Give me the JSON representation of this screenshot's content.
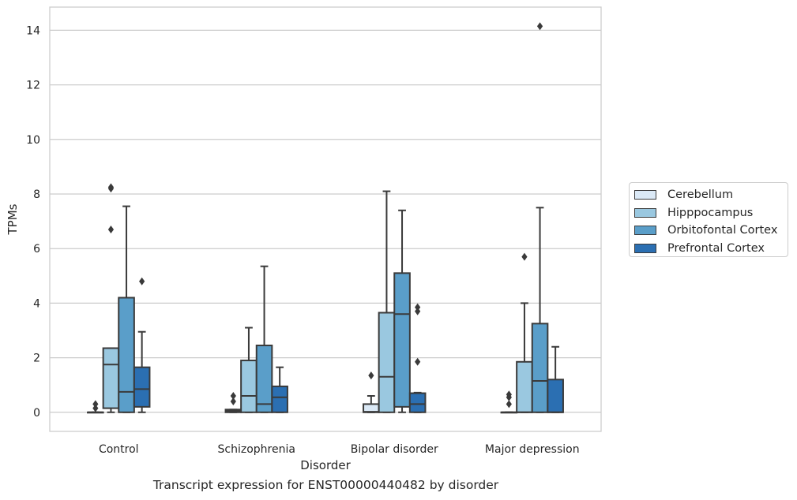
{
  "chart_data": {
    "type": "box",
    "caption": "Transcript expression for ENST00000440482 by disorder",
    "xlabel": "Disorder",
    "ylabel": "TPMs",
    "ylim": [
      -0.7,
      14.85
    ],
    "yticks": [
      0,
      2,
      4,
      6,
      8,
      10,
      12,
      14
    ],
    "grid": "horizontal",
    "legend_position": "right",
    "categories": [
      "Control",
      "Schizophrenia",
      "Bipolar disorder",
      "Major depression"
    ],
    "series": [
      {
        "name": "Cerebellum",
        "color": "#dbe9f6",
        "boxes": [
          {
            "q1": 0,
            "median": 0,
            "q3": 0,
            "whisker_low": 0,
            "whisker_high": 0,
            "outliers": [
              0.15,
              0.3
            ]
          },
          {
            "q1": 0,
            "median": 0.05,
            "q3": 0.1,
            "whisker_low": 0,
            "whisker_high": 0.1,
            "outliers": [
              0.4,
              0.6
            ]
          },
          {
            "q1": 0,
            "median": 0.02,
            "q3": 0.3,
            "whisker_low": 0,
            "whisker_high": 0.6,
            "outliers": [
              1.35
            ]
          },
          {
            "q1": 0,
            "median": 0,
            "q3": 0,
            "whisker_low": 0,
            "whisker_high": 0,
            "outliers": [
              0.3,
              0.55,
              0.65
            ]
          }
        ]
      },
      {
        "name": "Hipppocampus",
        "color": "#9ac8e0",
        "boxes": [
          {
            "q1": 0.15,
            "median": 1.75,
            "q3": 2.35,
            "whisker_low": 0,
            "whisker_high": 2.35,
            "outliers": [
              6.7,
              8.2,
              8.25
            ]
          },
          {
            "q1": 0,
            "median": 0.6,
            "q3": 1.9,
            "whisker_low": 0,
            "whisker_high": 3.1,
            "outliers": []
          },
          {
            "q1": 0,
            "median": 1.3,
            "q3": 3.65,
            "whisker_low": 0,
            "whisker_high": 8.1,
            "outliers": []
          },
          {
            "q1": 0,
            "median": 0,
            "q3": 1.85,
            "whisker_low": 0,
            "whisker_high": 4.0,
            "outliers": [
              5.7
            ]
          }
        ]
      },
      {
        "name": "Orbitofontal Cortex",
        "color": "#5a9ec9",
        "boxes": [
          {
            "q1": 0,
            "median": 0.75,
            "q3": 4.2,
            "whisker_low": 0,
            "whisker_high": 7.55,
            "outliers": []
          },
          {
            "q1": 0,
            "median": 0.3,
            "q3": 2.45,
            "whisker_low": 0,
            "whisker_high": 5.35,
            "outliers": []
          },
          {
            "q1": 0.2,
            "median": 3.6,
            "q3": 5.1,
            "whisker_low": 0,
            "whisker_high": 7.4,
            "outliers": []
          },
          {
            "q1": 0,
            "median": 1.15,
            "q3": 3.25,
            "whisker_low": 0,
            "whisker_high": 7.5,
            "outliers": [
              14.15
            ]
          }
        ]
      },
      {
        "name": "Prefrontal Cortex",
        "color": "#2b6fb2",
        "boxes": [
          {
            "q1": 0.2,
            "median": 0.85,
            "q3": 1.65,
            "whisker_low": 0,
            "whisker_high": 2.95,
            "outliers": [
              4.8
            ]
          },
          {
            "q1": 0,
            "median": 0.55,
            "q3": 0.95,
            "whisker_low": 0,
            "whisker_high": 1.65,
            "outliers": []
          },
          {
            "q1": 0,
            "median": 0.3,
            "q3": 0.7,
            "whisker_low": 0,
            "whisker_high": 0.72,
            "outliers": [
              1.85,
              3.7,
              3.85
            ]
          },
          {
            "q1": 0,
            "median": 0,
            "q3": 1.2,
            "whisker_low": 0,
            "whisker_high": 2.4,
            "outliers": []
          }
        ]
      }
    ]
  }
}
